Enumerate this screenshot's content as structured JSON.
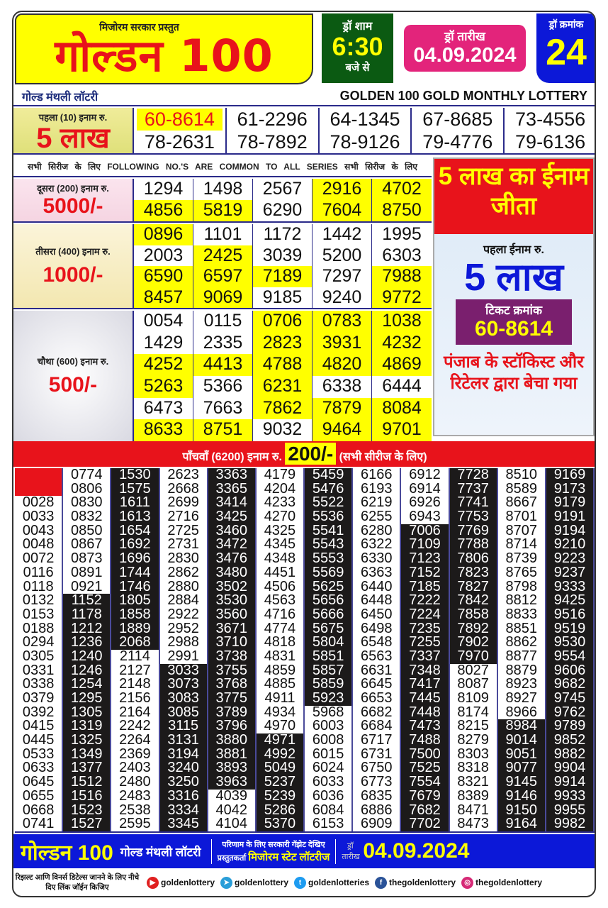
{
  "header": {
    "presented_by": "मिजोरम सरकार प्रस्तुत",
    "logo_text": "गोल्डन 100",
    "draw_time_label": "ड्रॉ शाम",
    "draw_time": "6:30",
    "draw_time_suffix": "बजे से",
    "draw_date_label": "ड्रॉ तारीख",
    "draw_date": "04.09.2024",
    "draw_no_label": "ड्रॉ क्रमांक",
    "draw_no": "24",
    "subtitle_hi": "गोल्ड मंथली लॉटरी",
    "subtitle_en": "GOLDEN 100 GOLD MONTHLY LOTTERY"
  },
  "colors": {
    "red": "#e8131b",
    "yellow": "#ffff00",
    "blue": "#0c18d8",
    "green": "#0b5a12",
    "pink": "#e3247b",
    "purple": "#7a1f6e"
  },
  "first_prize": {
    "label": "पहला (10) इनाम रु.",
    "amount": "5 लाख",
    "numbers": [
      {
        "v": "60-8614",
        "h": true
      },
      {
        "v": "61-2296"
      },
      {
        "v": "64-1345"
      },
      {
        "v": "67-8685"
      },
      {
        "v": "73-4556"
      },
      {
        "v": "78-2631"
      },
      {
        "v": "78-7892"
      },
      {
        "v": "78-9126"
      },
      {
        "v": "79-4776"
      },
      {
        "v": "79-6136"
      }
    ]
  },
  "common_note": "सभी सिरीज के लिए   FOLLOWING NO.'S ARE COMMON TO ALL SERIES   सभी सिरीज के लिए",
  "second_prize": {
    "label": "दूसरा (200) इनाम रु.",
    "amount": "5000/-",
    "numbers": [
      {
        "v": "1294"
      },
      {
        "v": "1498"
      },
      {
        "v": "2567"
      },
      {
        "v": "2916",
        "h": true
      },
      {
        "v": "4702",
        "h": true
      },
      {
        "v": "4856",
        "h": true
      },
      {
        "v": "5819",
        "h": true
      },
      {
        "v": "6290"
      },
      {
        "v": "7604",
        "h": true
      },
      {
        "v": "8750",
        "h": true
      }
    ]
  },
  "third_prize": {
    "label": "तीसरा (400) इनाम रु.",
    "amount": "1000/-",
    "numbers": [
      {
        "v": "0896",
        "h": true
      },
      {
        "v": "1101"
      },
      {
        "v": "1172"
      },
      {
        "v": "1442"
      },
      {
        "v": "1995"
      },
      {
        "v": "2003"
      },
      {
        "v": "2425",
        "h": true
      },
      {
        "v": "3039"
      },
      {
        "v": "5200"
      },
      {
        "v": "6303"
      },
      {
        "v": "6590",
        "h": true
      },
      {
        "v": "6597",
        "h": true
      },
      {
        "v": "7189",
        "h": true
      },
      {
        "v": "7297"
      },
      {
        "v": "7988",
        "h": true
      },
      {
        "v": "8457",
        "h": true
      },
      {
        "v": "9069",
        "h": true
      },
      {
        "v": "9185"
      },
      {
        "v": "9240"
      },
      {
        "v": "9772",
        "h": true
      }
    ]
  },
  "fourth_prize": {
    "label": "चौथा (600) इनाम रु.",
    "amount": "500/-",
    "numbers": [
      {
        "v": "0054"
      },
      {
        "v": "0115"
      },
      {
        "v": "0706",
        "h": true
      },
      {
        "v": "0783",
        "h": true
      },
      {
        "v": "1038",
        "h": true
      },
      {
        "v": "1429"
      },
      {
        "v": "2335"
      },
      {
        "v": "2823",
        "h": true
      },
      {
        "v": "3931",
        "h": true
      },
      {
        "v": "4232",
        "h": true
      },
      {
        "v": "4252",
        "h": true
      },
      {
        "v": "4413",
        "h": true
      },
      {
        "v": "4788",
        "h": true
      },
      {
        "v": "4820",
        "h": true
      },
      {
        "v": "4869",
        "h": true
      },
      {
        "v": "5263",
        "h": true
      },
      {
        "v": "5366"
      },
      {
        "v": "6231",
        "h": true
      },
      {
        "v": "6338"
      },
      {
        "v": "6444"
      },
      {
        "v": "6473"
      },
      {
        "v": "7663"
      },
      {
        "v": "7862",
        "h": true
      },
      {
        "v": "7879",
        "h": true
      },
      {
        "v": "8084",
        "h": true
      },
      {
        "v": "8633",
        "h": true
      },
      {
        "v": "8751",
        "h": true
      },
      {
        "v": "9032"
      },
      {
        "v": "9464",
        "h": true
      },
      {
        "v": "9701",
        "h": true
      }
    ]
  },
  "winner_panel": {
    "headline": "5 लाख का ईनाम जीता",
    "first_prize_label": "पहला ईनाम रु.",
    "amount": "5 लाख",
    "ticket_label": "टिकट क्रमांक",
    "ticket_no": "60-8614",
    "sold_by": "पंजाब के स्टॉकिस्ट और रिटेलर द्वारा बेचा गया"
  },
  "fifth_prize": {
    "label": "पाँचवाँ (6200) इनाम रु.",
    "amount": "200/-",
    "note": "(सभी सीरीज के लिए)",
    "columns": [
      {
        "dark": null,
        "blank_top": 2,
        "numbers": [
          "0028",
          "0033",
          "0043",
          "0048",
          "0072",
          "0116",
          "0118",
          "0132",
          "0153",
          "0188",
          "0294",
          "0305",
          "0331",
          "0338",
          "0379",
          "0392",
          "0415",
          "0445",
          "0533",
          "0633",
          "0645",
          "0655",
          "0668",
          "0741"
        ]
      },
      {
        "dark": [
          10,
          26
        ],
        "numbers": [
          "0774",
          "0806",
          "0830",
          "0832",
          "0850",
          "0867",
          "0873",
          "0891",
          "0921",
          "1152",
          "1178",
          "1212",
          "1236",
          "1240",
          "1246",
          "1254",
          "1295",
          "1305",
          "1319",
          "1325",
          "1349",
          "1377",
          "1512",
          "1516",
          "1523",
          "1527"
        ]
      },
      {
        "dark": [
          1,
          13
        ],
        "numbers": [
          "1530",
          "1575",
          "1611",
          "1613",
          "1654",
          "1692",
          "1696",
          "1744",
          "1746",
          "1805",
          "1858",
          "1889",
          "2068",
          "2114",
          "2127",
          "2148",
          "2156",
          "2164",
          "2242",
          "2264",
          "2369",
          "2403",
          "2480",
          "2483",
          "2538",
          "2595"
        ]
      },
      {
        "dark": [
          15,
          26
        ],
        "numbers": [
          "2623",
          "2668",
          "2699",
          "2716",
          "2725",
          "2731",
          "2830",
          "2862",
          "2880",
          "2884",
          "2922",
          "2952",
          "2988",
          "2991",
          "3033",
          "3073",
          "3083",
          "3085",
          "3115",
          "3131",
          "3194",
          "3240",
          "3250",
          "3316",
          "3334",
          "3345"
        ]
      },
      {
        "dark": [
          1,
          23
        ],
        "numbers": [
          "3363",
          "3365",
          "3414",
          "3425",
          "3460",
          "3472",
          "3476",
          "3480",
          "3502",
          "3530",
          "3560",
          "3671",
          "3710",
          "3738",
          "3755",
          "3768",
          "3775",
          "3789",
          "3796",
          "3880",
          "3881",
          "3893",
          "3963",
          "4039",
          "4042",
          "4104"
        ]
      },
      {
        "dark": [
          20,
          26
        ],
        "numbers": [
          "4179",
          "4204",
          "4233",
          "4270",
          "4325",
          "4345",
          "4348",
          "4451",
          "4506",
          "4563",
          "4716",
          "4774",
          "4818",
          "4831",
          "4859",
          "4885",
          "4911",
          "4934",
          "4970",
          "4971",
          "4992",
          "5049",
          "5237",
          "5239",
          "5286",
          "5370"
        ]
      },
      {
        "dark": [
          1,
          17
        ],
        "numbers": [
          "5459",
          "5476",
          "5522",
          "5536",
          "5541",
          "5543",
          "5553",
          "5569",
          "5625",
          "5656",
          "5666",
          "5675",
          "5804",
          "5851",
          "5857",
          "5859",
          "5923",
          "5968",
          "6003",
          "6008",
          "6015",
          "6024",
          "6033",
          "6036",
          "6084",
          "6153"
        ]
      },
      {
        "dark": null,
        "numbers": [
          "6166",
          "6193",
          "6219",
          "6255",
          "6280",
          "6322",
          "6330",
          "6363",
          "6440",
          "6448",
          "6450",
          "6498",
          "6548",
          "6563",
          "6631",
          "6645",
          "6653",
          "6682",
          "6684",
          "6717",
          "6731",
          "6750",
          "6773",
          "6835",
          "6886",
          "6909"
        ]
      },
      {
        "dark": [
          5,
          26
        ],
        "numbers": [
          "6912",
          "6914",
          "6926",
          "6943",
          "7006",
          "7109",
          "7123",
          "7152",
          "7185",
          "7222",
          "7224",
          "7235",
          "7255",
          "7337",
          "7348",
          "7417",
          "7445",
          "7448",
          "7473",
          "7488",
          "7500",
          "7525",
          "7554",
          "7679",
          "7682",
          "7702"
        ]
      },
      {
        "dark": [
          1,
          14
        ],
        "numbers": [
          "7728",
          "7737",
          "7741",
          "7753",
          "7769",
          "7788",
          "7806",
          "7823",
          "7827",
          "7842",
          "7858",
          "7892",
          "7902",
          "7970",
          "8027",
          "8087",
          "8109",
          "8174",
          "8215",
          "8279",
          "8303",
          "8318",
          "8321",
          "8389",
          "8471",
          "8473"
        ]
      },
      {
        "dark": [
          19,
          26
        ],
        "numbers": [
          "8510",
          "8589",
          "8667",
          "8701",
          "8707",
          "8714",
          "8739",
          "8765",
          "8798",
          "8812",
          "8833",
          "8851",
          "8862",
          "8877",
          "8879",
          "8923",
          "8927",
          "8966",
          "8984",
          "9014",
          "9051",
          "9077",
          "9145",
          "9146",
          "9150",
          "9164"
        ]
      },
      {
        "dark": [
          1,
          26
        ],
        "numbers": [
          "9169",
          "9173",
          "9179",
          "9191",
          "9194",
          "9210",
          "9223",
          "9237",
          "9333",
          "9425",
          "9516",
          "9519",
          "9530",
          "9554",
          "9606",
          "9682",
          "9745",
          "9762",
          "9789",
          "9852",
          "9882",
          "9904",
          "9914",
          "9933",
          "9955",
          "9982"
        ]
      }
    ]
  },
  "footer": {
    "logo_text": "गोल्डन 100",
    "name": "गोल्ड मंथली लॉटरी",
    "gazette_note": "परिणाम के लिए सरकारी गॅझेट देखिए",
    "presenter_label": "प्रस्तुतकर्ता",
    "presenter": "मिजोरम स्टेट लॉटरीज",
    "date_label": "ड्रॉ तारीख",
    "date": "04.09.2024",
    "join_note": "रिझल्ट आणि विनर्स डिटेल्स जानने के लिए नीचे दिए लिंक जॉईन किजिए",
    "social": [
      {
        "icon": "youtube-icon",
        "handle": "goldenlottery",
        "color": "#e02020",
        "glyph": "▶"
      },
      {
        "icon": "telegram-icon",
        "handle": "goldenlottery",
        "color": "#2a9ed8",
        "glyph": "➤"
      },
      {
        "icon": "twitter-icon",
        "handle": "goldenlotteries",
        "color": "#1d9bf0",
        "glyph": "t"
      },
      {
        "icon": "facebook-icon",
        "handle": "thegoldenlottery",
        "color": "#2a5298",
        "glyph": "f"
      },
      {
        "icon": "instagram-icon",
        "handle": "thegoldenlottery",
        "color": "#d62976",
        "glyph": "◎"
      }
    ]
  }
}
